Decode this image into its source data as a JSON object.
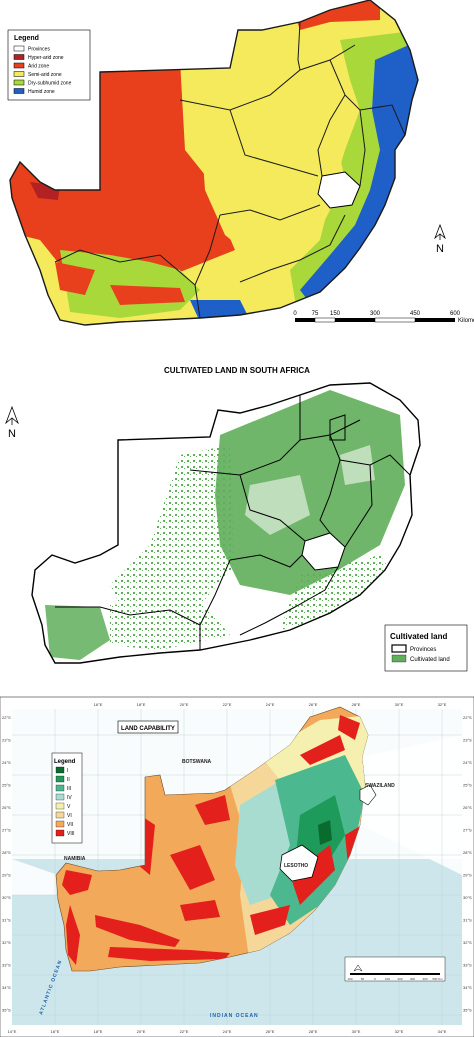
{
  "panel1": {
    "legend": {
      "title": "Legend",
      "items": [
        {
          "label": "Provinces",
          "color": "#ffffff"
        },
        {
          "label": "Hyper-arid zone",
          "color": "#b22222"
        },
        {
          "label": "Arid zone",
          "color": "#e8401c"
        },
        {
          "label": "Semi-arid zone",
          "color": "#f4ea5c"
        },
        {
          "label": "Dry-subhumid zone",
          "color": "#a8d83a"
        },
        {
          "label": "Humid zone",
          "color": "#1f5fc8"
        }
      ]
    },
    "north_label": "N",
    "scale": {
      "ticks": [
        "0",
        "75",
        "150",
        "300",
        "450",
        "600"
      ],
      "unit": "Kilometers"
    }
  },
  "panel2": {
    "title": "CULTIVATED LAND IN SOUTH AFRICA",
    "north_label": "N",
    "legend": {
      "title": "Cultivated land",
      "items": [
        {
          "label": "Provinces",
          "color": "#ffffff"
        },
        {
          "label": "Cultivated land",
          "color": "#5fae5a"
        }
      ]
    }
  },
  "panel3": {
    "title": "LAND CAPABILITY",
    "legend": {
      "title": "Legend",
      "items": [
        {
          "label": "I",
          "color": "#0a6b2e"
        },
        {
          "label": "II",
          "color": "#1e9a5a"
        },
        {
          "label": "III",
          "color": "#4cb890"
        },
        {
          "label": "IV",
          "color": "#a8dcd0"
        },
        {
          "label": "V",
          "color": "#f6f0b0"
        },
        {
          "label": "VI",
          "color": "#f6d79a"
        },
        {
          "label": "VII",
          "color": "#f2a95a"
        },
        {
          "label": "VIII",
          "color": "#e3201b"
        }
      ]
    },
    "labels": {
      "botswana": "BOTSWANA",
      "namibia": "NAMIBIA",
      "swaziland": "SWAZILAND",
      "lesotho": "LESOTHO",
      "atlantic": "ATLANTIC OCEAN",
      "indian": "INDIAN OCEAN"
    },
    "top_coords": [
      "16°E",
      "18°E",
      "20°E",
      "22°E",
      "24°E",
      "26°E",
      "28°E",
      "30°E",
      "32°E"
    ],
    "bottom_coords": [
      "14°E",
      "16°E",
      "18°E",
      "20°E",
      "22°E",
      "24°E",
      "26°E",
      "28°E",
      "30°E",
      "32°E",
      "34°E"
    ],
    "left_coords": [
      "22°S",
      "23°S",
      "24°S",
      "25°S",
      "26°S",
      "27°S",
      "28°S",
      "29°S",
      "30°S",
      "31°S",
      "32°S",
      "33°S",
      "34°S",
      "35°S"
    ],
    "scale": {
      "ticks": [
        "100",
        "50",
        "0",
        "100",
        "200",
        "300",
        "400",
        "500 Km"
      ]
    }
  }
}
